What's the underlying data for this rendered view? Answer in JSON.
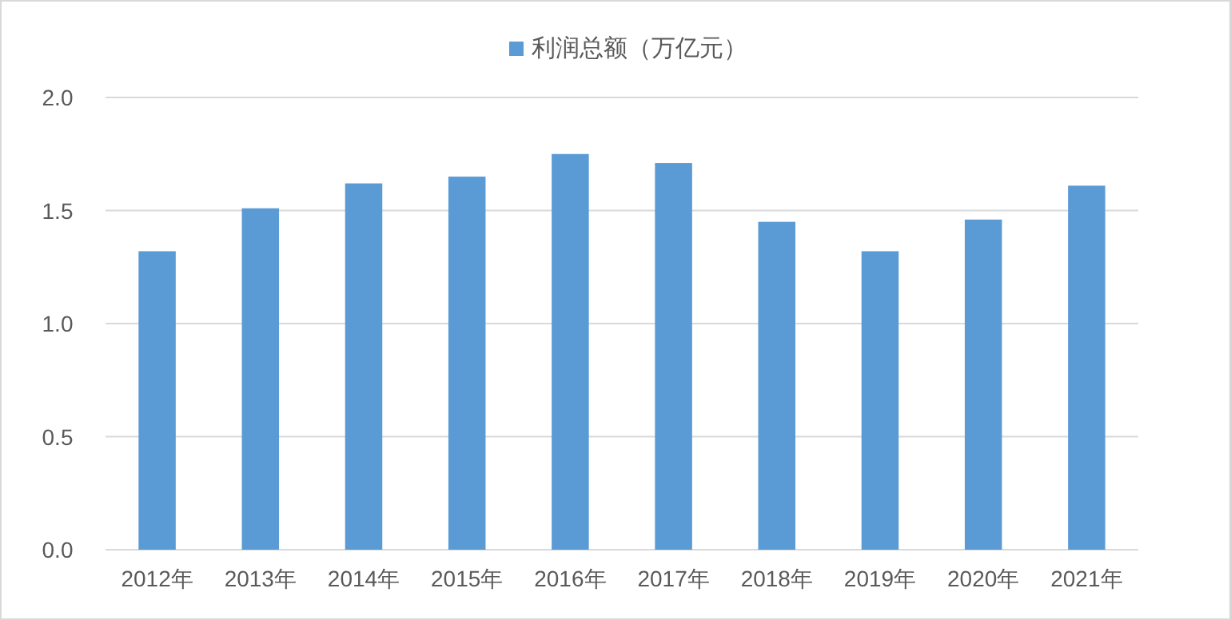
{
  "chart_data": {
    "type": "bar",
    "categories": [
      "2012年",
      "2013年",
      "2014年",
      "2015年",
      "2016年",
      "2017年",
      "2018年",
      "2019年",
      "2020年",
      "2021年"
    ],
    "series": [
      {
        "name": "利润总额（万亿元）",
        "color": "#5b9bd5",
        "values": [
          1.32,
          1.51,
          1.62,
          1.65,
          1.75,
          1.71,
          1.45,
          1.32,
          1.46,
          1.61
        ]
      }
    ],
    "ylim": [
      0,
      2.0
    ],
    "yticks": [
      {
        "value": 0,
        "label": "0.0"
      },
      {
        "value": 0.5,
        "label": "0.5"
      },
      {
        "value": 1.0,
        "label": "1.0"
      },
      {
        "value": 1.5,
        "label": "1.5"
      },
      {
        "value": 2.0,
        "label": "2.0"
      }
    ],
    "grid": "y",
    "legend": "top"
  }
}
